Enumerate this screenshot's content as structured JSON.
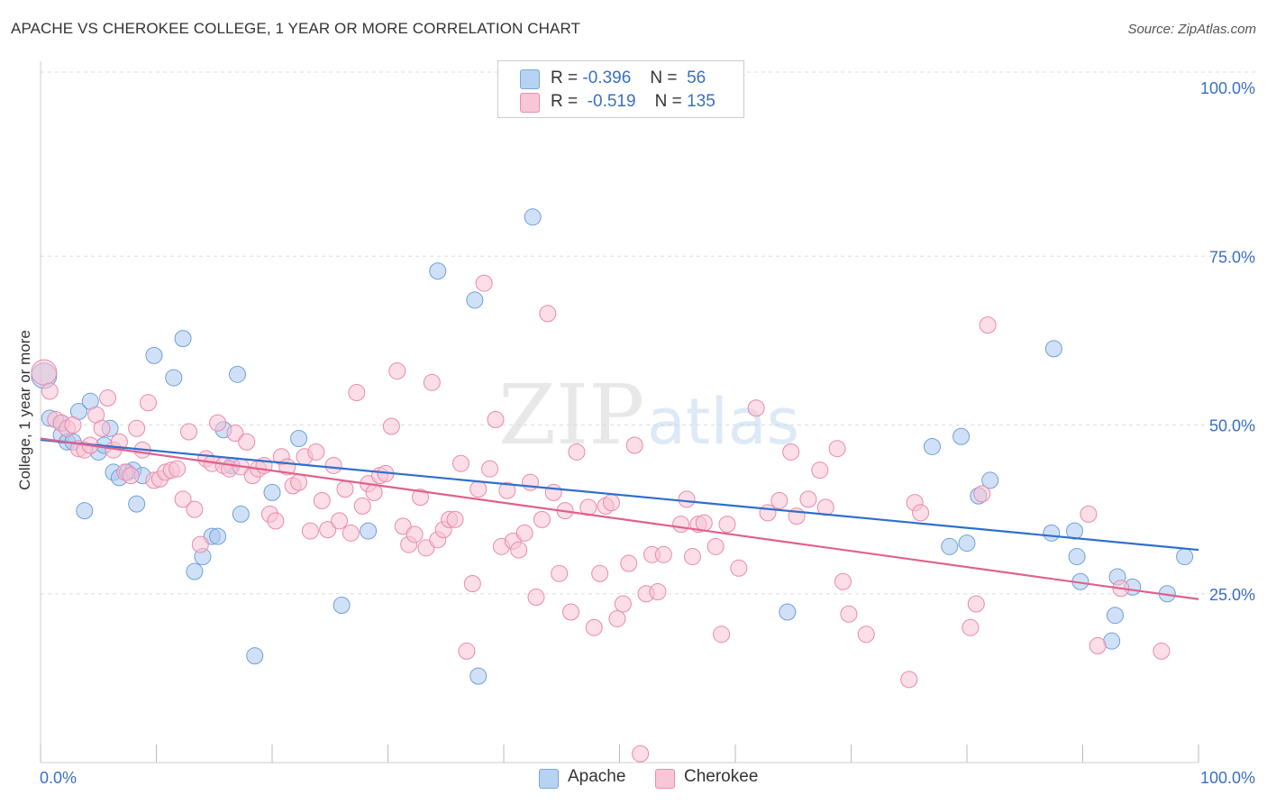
{
  "title": "APACHE VS CHEROKEE COLLEGE, 1 YEAR OR MORE CORRELATION CHART",
  "source": "Source: ZipAtlas.com",
  "watermark": {
    "zip": "ZIP",
    "atlas": "atlas"
  },
  "legend": {
    "rows": [
      {
        "r_label": "R =",
        "r_value": "-0.396",
        "n_label": "N =",
        "n_value": "56",
        "color": "#b7d3f3",
        "border": "#7aa6dd"
      },
      {
        "r_label": "R =",
        "r_value": "-0.519",
        "n_label": "N =",
        "n_value": "135",
        "color": "#f8c6d6",
        "border": "#ea8fae"
      }
    ]
  },
  "chart_data": {
    "type": "scatter",
    "ylabel": "College, 1 year or more",
    "x_tick_labels": {
      "left": "0.0%",
      "right": "100.0%"
    },
    "y_tick_labels": [
      "100.0%",
      "75.0%",
      "50.0%",
      "25.0%"
    ],
    "xlim": [
      0,
      100
    ],
    "ylim": [
      0,
      100
    ],
    "grid": true,
    "legend_position": "top-center",
    "series": [
      {
        "name": "Apache",
        "color": "#a9c8f0",
        "edge": "#6f9fd9",
        "line_color": "#2f6fcc",
        "trend": {
          "x0": 0,
          "y0": 47.8,
          "x1": 100,
          "y1": 31.5
        },
        "points": [
          [
            0.3,
            57.3
          ],
          [
            0.8,
            51.0
          ],
          [
            1.8,
            50.3
          ],
          [
            1.8,
            48.5
          ],
          [
            2.3,
            47.5
          ],
          [
            2.8,
            47.5
          ],
          [
            3.3,
            52.0
          ],
          [
            3.8,
            37.3
          ],
          [
            4.3,
            53.5
          ],
          [
            5.0,
            46.0
          ],
          [
            5.5,
            47.0
          ],
          [
            6.0,
            49.5
          ],
          [
            6.3,
            43.0
          ],
          [
            6.8,
            42.2
          ],
          [
            7.5,
            43.0
          ],
          [
            8.0,
            43.3
          ],
          [
            8.3,
            38.3
          ],
          [
            8.8,
            42.5
          ],
          [
            9.8,
            60.3
          ],
          [
            11.5,
            57.0
          ],
          [
            12.3,
            62.8
          ],
          [
            13.3,
            28.3
          ],
          [
            14.0,
            30.5
          ],
          [
            14.8,
            33.5
          ],
          [
            15.3,
            33.5
          ],
          [
            15.8,
            49.3
          ],
          [
            16.5,
            44.0
          ],
          [
            17.0,
            57.5
          ],
          [
            17.3,
            36.8
          ],
          [
            18.5,
            15.8
          ],
          [
            20.0,
            40.0
          ],
          [
            22.3,
            48.0
          ],
          [
            26.0,
            23.3
          ],
          [
            28.3,
            34.3
          ],
          [
            34.3,
            72.8
          ],
          [
            37.5,
            68.5
          ],
          [
            37.8,
            12.8
          ],
          [
            42.5,
            80.8
          ],
          [
            64.5,
            22.3
          ],
          [
            77.0,
            46.8
          ],
          [
            78.5,
            32.0
          ],
          [
            79.5,
            48.3
          ],
          [
            80.0,
            32.5
          ],
          [
            81.0,
            39.5
          ],
          [
            82.0,
            41.8
          ],
          [
            87.5,
            61.3
          ],
          [
            87.3,
            34.0
          ],
          [
            89.3,
            34.3
          ],
          [
            89.5,
            30.5
          ],
          [
            89.8,
            26.8
          ],
          [
            92.5,
            18.0
          ],
          [
            92.8,
            21.8
          ],
          [
            93.0,
            27.5
          ],
          [
            94.3,
            26.0
          ],
          [
            97.3,
            25.0
          ],
          [
            98.8,
            30.5
          ]
        ]
      },
      {
        "name": "Cherokee",
        "color": "#f7c3d4",
        "edge": "#e98aab",
        "line_color": "#e0608c",
        "trend": {
          "x0": 0,
          "y0": 48.0,
          "x1": 100,
          "y1": 24.2
        },
        "points": [
          [
            0.3,
            57.8
          ],
          [
            0.8,
            55.0
          ],
          [
            1.3,
            50.8
          ],
          [
            1.8,
            50.3
          ],
          [
            2.3,
            49.5
          ],
          [
            2.8,
            50.0
          ],
          [
            3.3,
            46.5
          ],
          [
            3.8,
            46.3
          ],
          [
            4.3,
            47.0
          ],
          [
            4.8,
            51.5
          ],
          [
            5.3,
            49.5
          ],
          [
            5.8,
            54.0
          ],
          [
            6.3,
            46.3
          ],
          [
            6.8,
            47.5
          ],
          [
            7.3,
            43.0
          ],
          [
            7.8,
            42.5
          ],
          [
            8.3,
            49.5
          ],
          [
            8.8,
            46.3
          ],
          [
            9.3,
            53.3
          ],
          [
            9.8,
            41.8
          ],
          [
            10.3,
            42.0
          ],
          [
            10.8,
            43.0
          ],
          [
            11.3,
            43.3
          ],
          [
            11.8,
            43.5
          ],
          [
            12.3,
            39.0
          ],
          [
            12.8,
            49.0
          ],
          [
            13.3,
            37.5
          ],
          [
            13.8,
            32.3
          ],
          [
            14.3,
            45.0
          ],
          [
            14.8,
            44.3
          ],
          [
            15.3,
            50.3
          ],
          [
            15.8,
            44.0
          ],
          [
            16.3,
            43.5
          ],
          [
            16.8,
            48.8
          ],
          [
            17.3,
            43.8
          ],
          [
            17.8,
            47.5
          ],
          [
            18.3,
            42.5
          ],
          [
            18.8,
            43.5
          ],
          [
            19.3,
            44.0
          ],
          [
            19.8,
            36.8
          ],
          [
            20.3,
            35.8
          ],
          [
            20.8,
            45.3
          ],
          [
            21.3,
            43.8
          ],
          [
            21.8,
            41.0
          ],
          [
            22.3,
            41.5
          ],
          [
            22.8,
            45.3
          ],
          [
            23.3,
            34.3
          ],
          [
            23.8,
            46.0
          ],
          [
            24.3,
            38.8
          ],
          [
            24.8,
            34.5
          ],
          [
            25.3,
            44.0
          ],
          [
            25.8,
            35.8
          ],
          [
            26.3,
            40.5
          ],
          [
            26.8,
            34.0
          ],
          [
            27.3,
            54.8
          ],
          [
            27.8,
            38.0
          ],
          [
            28.3,
            41.3
          ],
          [
            28.8,
            40.0
          ],
          [
            29.3,
            42.5
          ],
          [
            29.8,
            42.8
          ],
          [
            30.3,
            49.8
          ],
          [
            30.8,
            58.0
          ],
          [
            31.3,
            35.0
          ],
          [
            31.8,
            32.3
          ],
          [
            32.3,
            33.8
          ],
          [
            32.8,
            39.3
          ],
          [
            33.3,
            31.8
          ],
          [
            33.8,
            56.3
          ],
          [
            34.3,
            33.0
          ],
          [
            34.8,
            34.5
          ],
          [
            35.3,
            36.0
          ],
          [
            35.8,
            36.0
          ],
          [
            36.3,
            44.3
          ],
          [
            36.8,
            16.5
          ],
          [
            37.3,
            26.5
          ],
          [
            37.8,
            40.5
          ],
          [
            38.3,
            71.0
          ],
          [
            38.8,
            43.5
          ],
          [
            39.3,
            50.8
          ],
          [
            39.8,
            32.0
          ],
          [
            40.3,
            40.3
          ],
          [
            40.8,
            32.8
          ],
          [
            41.3,
            31.5
          ],
          [
            41.8,
            34.0
          ],
          [
            42.3,
            41.5
          ],
          [
            42.8,
            24.5
          ],
          [
            43.3,
            36.0
          ],
          [
            43.8,
            66.5
          ],
          [
            44.3,
            40.0
          ],
          [
            44.8,
            28.0
          ],
          [
            45.3,
            37.3
          ],
          [
            45.8,
            22.3
          ],
          [
            46.3,
            46.0
          ],
          [
            47.3,
            37.8
          ],
          [
            47.8,
            20.0
          ],
          [
            48.3,
            28.0
          ],
          [
            48.8,
            38.0
          ],
          [
            49.3,
            38.5
          ],
          [
            49.8,
            21.3
          ],
          [
            50.3,
            23.5
          ],
          [
            50.8,
            29.5
          ],
          [
            51.3,
            47.0
          ],
          [
            51.8,
            1.3
          ],
          [
            52.3,
            25.0
          ],
          [
            52.8,
            30.8
          ],
          [
            53.3,
            25.3
          ],
          [
            53.8,
            30.8
          ],
          [
            55.3,
            35.3
          ],
          [
            55.8,
            39.0
          ],
          [
            56.3,
            30.5
          ],
          [
            56.8,
            35.3
          ],
          [
            57.3,
            35.5
          ],
          [
            58.3,
            32.0
          ],
          [
            58.8,
            19.0
          ],
          [
            59.3,
            35.3
          ],
          [
            60.3,
            28.8
          ],
          [
            61.8,
            52.5
          ],
          [
            62.8,
            37.0
          ],
          [
            63.8,
            38.8
          ],
          [
            64.8,
            46.0
          ],
          [
            65.3,
            36.5
          ],
          [
            66.3,
            39.0
          ],
          [
            67.3,
            43.3
          ],
          [
            67.8,
            37.8
          ],
          [
            68.8,
            46.5
          ],
          [
            69.3,
            26.8
          ],
          [
            69.8,
            22.0
          ],
          [
            71.3,
            19.0
          ],
          [
            75.0,
            12.3
          ],
          [
            75.5,
            38.5
          ],
          [
            76.0,
            37.0
          ],
          [
            80.3,
            20.0
          ],
          [
            80.8,
            23.5
          ],
          [
            81.3,
            39.8
          ],
          [
            81.8,
            64.8
          ],
          [
            90.5,
            36.8
          ],
          [
            91.3,
            17.3
          ],
          [
            93.3,
            25.8
          ],
          [
            96.8,
            16.5
          ]
        ]
      }
    ]
  }
}
